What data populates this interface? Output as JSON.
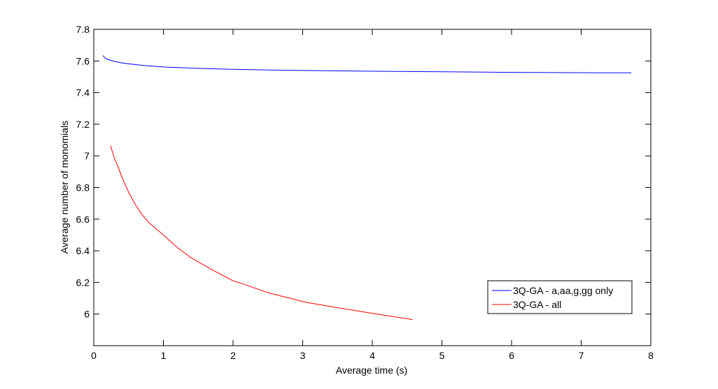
{
  "chart_data": {
    "type": "line",
    "title": "",
    "xlabel": "Average time (s)",
    "ylabel": "Average number of monomials",
    "xlim": [
      0,
      8
    ],
    "ylim": [
      5.8,
      7.8
    ],
    "xticks": [
      0,
      1,
      2,
      3,
      4,
      5,
      6,
      7,
      8
    ],
    "yticks": [
      6,
      6.2,
      6.4,
      6.6,
      6.8,
      7,
      7.2,
      7.4,
      7.6,
      7.8
    ],
    "xtick_labels": [
      "0",
      "1",
      "2",
      "3",
      "4",
      "5",
      "6",
      "7",
      "8"
    ],
    "ytick_labels": [
      "6",
      "6.2",
      "6.4",
      "6.6",
      "6.8",
      "7",
      "7.2",
      "7.4",
      "7.6",
      "7.8"
    ],
    "grid": false,
    "legend_position": "lower-right",
    "series": [
      {
        "name": "3Q-GA - a,aa,g,gg only",
        "color": "#0000ff",
        "x": [
          0.13,
          0.16,
          0.2,
          0.25,
          0.3,
          0.4,
          0.5,
          0.7,
          1.0,
          1.5,
          2.0,
          2.5,
          3.0,
          4.0,
          5.0,
          6.0,
          7.0,
          7.72
        ],
        "y": [
          7.635,
          7.62,
          7.61,
          7.603,
          7.597,
          7.588,
          7.582,
          7.572,
          7.562,
          7.553,
          7.547,
          7.543,
          7.54,
          7.535,
          7.532,
          7.528,
          7.526,
          7.525
        ]
      },
      {
        "name": "3Q-GA - all",
        "color": "#ff0000",
        "x": [
          0.24,
          0.3,
          0.35,
          0.4,
          0.5,
          0.6,
          0.7,
          0.8,
          1.0,
          1.2,
          1.4,
          1.7,
          2.0,
          2.15,
          2.5,
          3.0,
          3.1,
          3.5,
          4.0,
          4.58
        ],
        "y": [
          7.065,
          6.98,
          6.93,
          6.87,
          6.77,
          6.69,
          6.625,
          6.575,
          6.5,
          6.42,
          6.355,
          6.28,
          6.21,
          6.19,
          6.135,
          6.08,
          6.07,
          6.04,
          6.005,
          5.965
        ]
      }
    ]
  }
}
